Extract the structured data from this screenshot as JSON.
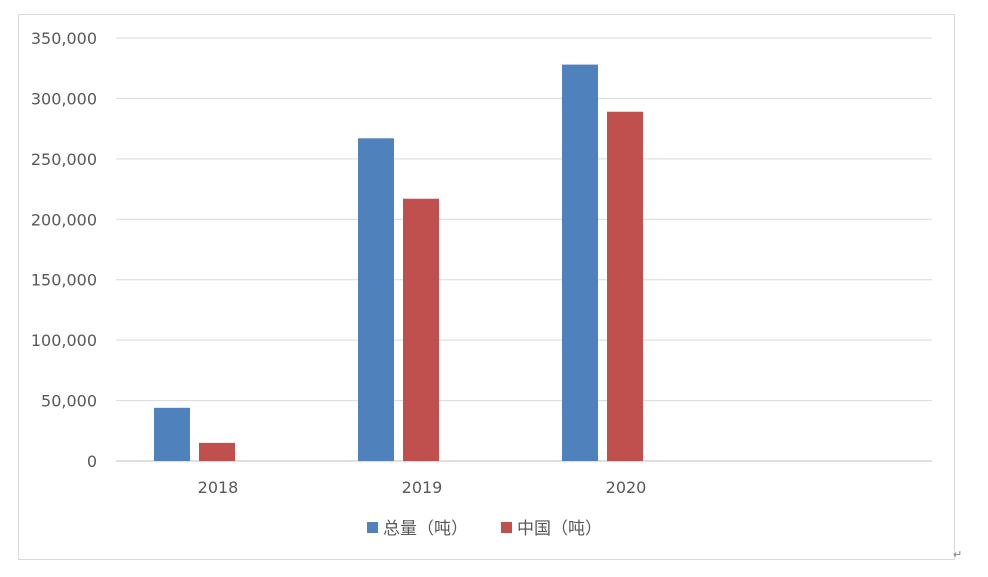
{
  "chart_data": {
    "type": "bar",
    "categories": [
      "2018",
      "2019",
      "2020"
    ],
    "series": [
      {
        "name": "总量（吨）",
        "color": "#4f81bd",
        "values": [
          44000,
          267000,
          328000
        ]
      },
      {
        "name": "中国（吨）",
        "color": "#c0504d",
        "values": [
          15000,
          217000,
          289000
        ]
      }
    ],
    "ylim": [
      0,
      350000
    ],
    "yticks": [
      0,
      50000,
      100000,
      150000,
      200000,
      250000,
      300000,
      350000
    ],
    "ytick_labels": [
      "0",
      "50,000",
      "100,000",
      "150,000",
      "200,000",
      "250,000",
      "300,000",
      "350,000"
    ],
    "grid": true,
    "legend": "bottom",
    "title": "",
    "xlabel": "",
    "ylabel": ""
  },
  "colors": {
    "grid": "#d9d9d9",
    "axis": "#bfbfbf",
    "text": "#595959"
  }
}
